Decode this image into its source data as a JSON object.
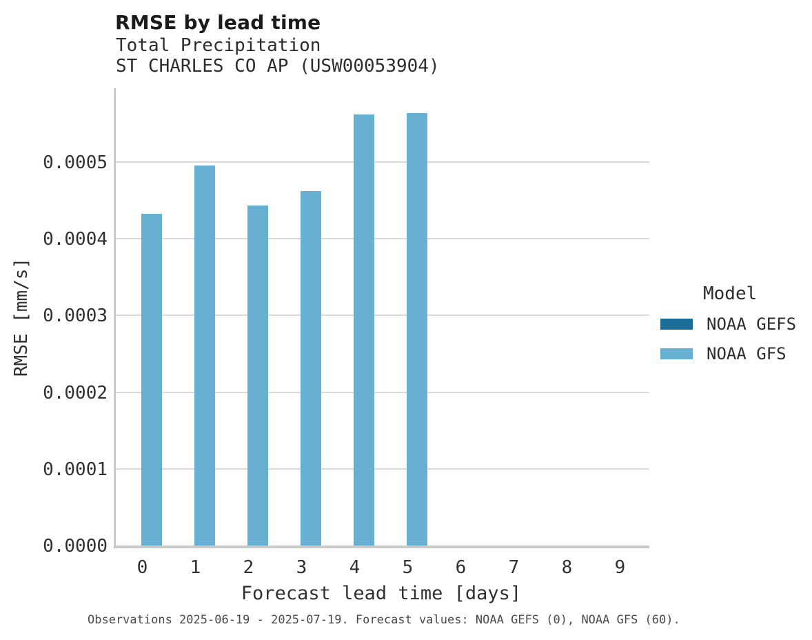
{
  "header": {
    "title": "RMSE by lead time",
    "subtitle_line1": "Total Precipitation",
    "subtitle_line2": "ST CHARLES CO AP (USW00053904)"
  },
  "chart_data": {
    "type": "bar",
    "title": "RMSE by lead time",
    "subtitle": "Total Precipitation / ST CHARLES CO AP (USW00053904)",
    "categories": [
      "0",
      "1",
      "2",
      "3",
      "4",
      "5",
      "6",
      "7",
      "8",
      "9"
    ],
    "series": [
      {
        "name": "NOAA GEFS",
        "color": "#1b6d97",
        "values": [
          null,
          null,
          null,
          null,
          null,
          null,
          null,
          null,
          null,
          null
        ]
      },
      {
        "name": "NOAA GFS",
        "color": "#67afd3",
        "values": [
          0.000432,
          0.000495,
          0.000443,
          0.000462,
          0.000562,
          0.000564,
          null,
          null,
          null,
          null
        ]
      }
    ],
    "xlabel": "Forecast lead time [days]",
    "ylabel": "RMSE [mm/s]",
    "ylim": [
      0,
      0.000596
    ],
    "yticks": [
      0,
      0.0001,
      0.0002,
      0.0003,
      0.0004,
      0.0005
    ],
    "ytick_labels": [
      "0.0000",
      "0.0001",
      "0.0002",
      "0.0003",
      "0.0004",
      "0.0005"
    ],
    "grid": "horizontal-major-only",
    "legend_position": "right-center"
  },
  "legend": {
    "title": "Model",
    "items": [
      {
        "label": "NOAA GEFS",
        "color": "#1b6d97"
      },
      {
        "label": "NOAA GFS",
        "color": "#67afd3"
      }
    ]
  },
  "footer": {
    "text": "Observations 2025-06-19 - 2025-07-19. Forecast values: NOAA GEFS (0), NOAA GFS (60)."
  },
  "colors": {
    "background": "#ffffff",
    "gridline": "#d9d9d9",
    "axis_line": "#c9c9c9",
    "title_text": "#1a1a1a",
    "axis_text": "#303030",
    "bar_gfs": "#67afd3",
    "bar_gefs": "#1b6d97"
  }
}
